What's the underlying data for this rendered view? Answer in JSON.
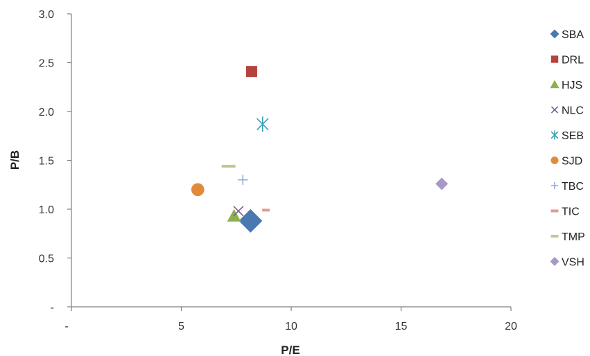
{
  "chart_data": {
    "type": "scatter",
    "xlabel": "P/E",
    "ylabel": "P/B",
    "xlim": [
      0,
      20
    ],
    "ylim": [
      0,
      3
    ],
    "x_ticks": [
      {
        "value": 0,
        "label": "-"
      },
      {
        "value": 5,
        "label": "5"
      },
      {
        "value": 10,
        "label": "10"
      },
      {
        "value": 15,
        "label": "15"
      },
      {
        "value": 20,
        "label": "20"
      }
    ],
    "y_ticks": [
      {
        "value": 0,
        "label": "-"
      },
      {
        "value": 0.5,
        "label": "0.5"
      },
      {
        "value": 1.0,
        "label": "1.0"
      },
      {
        "value": 1.5,
        "label": "1.5"
      },
      {
        "value": 2.0,
        "label": "2.0"
      },
      {
        "value": 2.5,
        "label": "2.5"
      },
      {
        "value": 3.0,
        "label": "3.0"
      }
    ],
    "grid": false,
    "legend_position": "right",
    "series": [
      {
        "name": "SBA",
        "x": 8.15,
        "y": 0.88,
        "marker": "diamond",
        "color": "#4a78b0"
      },
      {
        "name": "DRL",
        "x": 8.2,
        "y": 2.41,
        "marker": "square",
        "color": "#b5423f"
      },
      {
        "name": "HJS",
        "x": 7.4,
        "y": 0.93,
        "marker": "triangle",
        "color": "#8db14c"
      },
      {
        "name": "NLC",
        "x": 7.6,
        "y": 0.98,
        "marker": "x",
        "color": "#7a5d9a"
      },
      {
        "name": "SEB",
        "x": 8.7,
        "y": 1.87,
        "marker": "star",
        "color": "#3a9fb5"
      },
      {
        "name": "SJD",
        "x": 5.75,
        "y": 1.2,
        "marker": "circle",
        "color": "#e28a3c"
      },
      {
        "name": "TBC",
        "x": 7.8,
        "y": 1.3,
        "marker": "plus",
        "color": "#8ea6d6"
      },
      {
        "name": "TIC",
        "x": 8.85,
        "y": 0.99,
        "marker": "dash",
        "color": "#e09a95"
      },
      {
        "name": "TMP",
        "x": 7.15,
        "y": 1.44,
        "marker": "dash",
        "color": "#b7cc8e"
      },
      {
        "name": "VSH",
        "x": 16.85,
        "y": 1.26,
        "marker": "diamond",
        "color": "#a898c6"
      }
    ]
  }
}
